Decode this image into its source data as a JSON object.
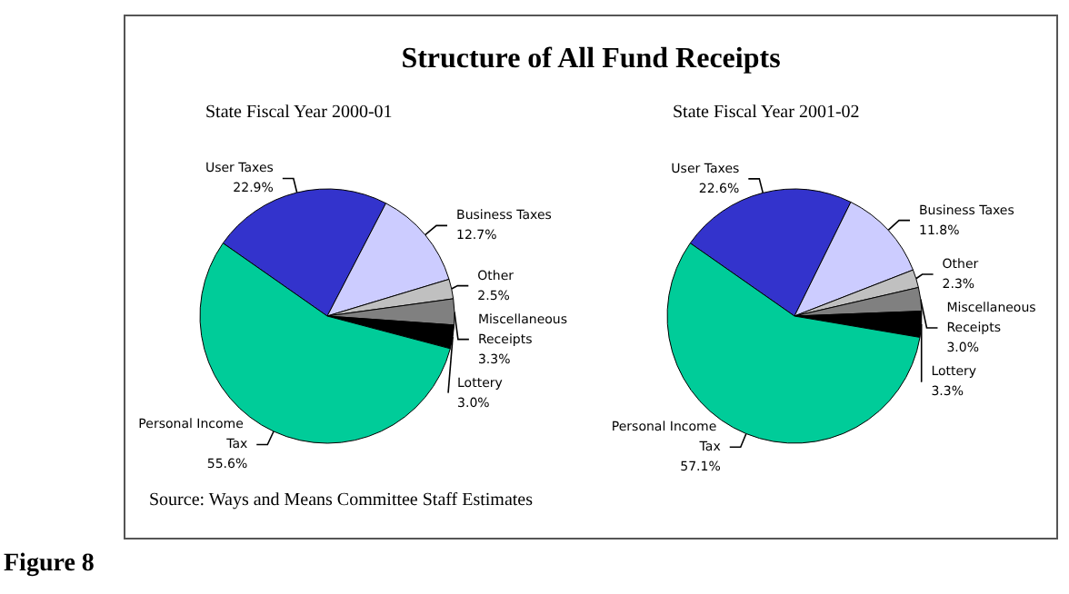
{
  "chart_data": [
    {
      "type": "pie",
      "title": "Structure of All Fund Receipts",
      "subtitle": "State Fiscal Year 2000-01",
      "categories": [
        "User Taxes",
        "Business Taxes",
        "Other",
        "Miscellaneous Receipts",
        "Lottery",
        "Personal Income Tax"
      ],
      "values": [
        22.9,
        12.7,
        2.5,
        3.3,
        3.0,
        55.6
      ],
      "colors": [
        "#3333cc",
        "#ccccff",
        "#c0c0c0",
        "#808080",
        "#000000",
        "#00cc99"
      ],
      "value_labels": [
        "22.9%",
        "12.7%",
        "2.5%",
        "3.3%",
        "3.0%",
        "55.6%"
      ],
      "legend": false,
      "annotations": [
        "Source: Ways and Means Committee Staff Estimates",
        "Figure 8"
      ]
    },
    {
      "type": "pie",
      "subtitle": "State Fiscal Year 2001-02",
      "categories": [
        "User Taxes",
        "Business Taxes",
        "Other",
        "Miscellaneous Receipts",
        "Lottery",
        "Personal Income Tax"
      ],
      "values": [
        22.6,
        11.8,
        2.3,
        3.0,
        3.3,
        57.1
      ],
      "colors": [
        "#3333cc",
        "#ccccff",
        "#c0c0c0",
        "#808080",
        "#000000",
        "#00cc99"
      ],
      "value_labels": [
        "22.6%",
        "11.8%",
        "2.3%",
        "3.0%",
        "3.3%",
        "57.1%"
      ],
      "legend": false
    }
  ]
}
